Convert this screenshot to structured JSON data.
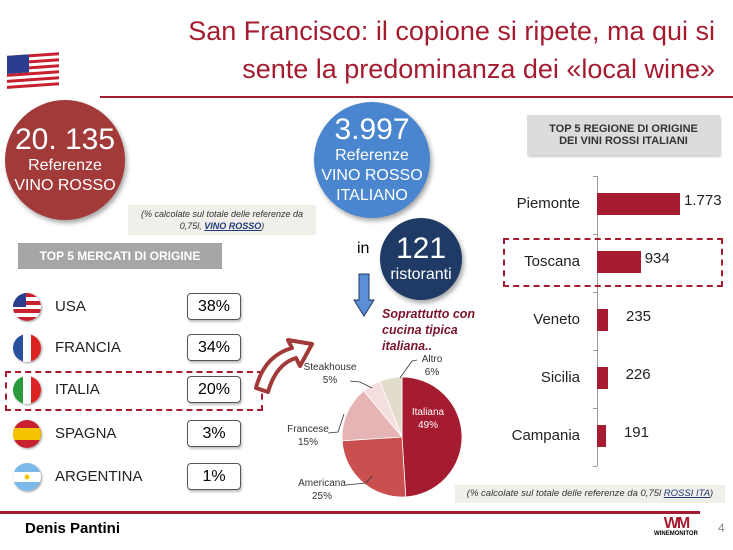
{
  "title": {
    "line1": "San Francisco: il copione si ripete, ma qui si",
    "line2": "sente la predominanza dei «local wine»"
  },
  "stat_total": {
    "value": "20. 135",
    "line1": "Referenze",
    "line2": "VINO ROSSO",
    "color": "#a33a3a"
  },
  "stat_italian": {
    "value": "3.997",
    "line1": "Referenze",
    "line2": "VINO ROSSO",
    "line3": "ITALIANO",
    "color": "#4a86d0"
  },
  "restaurants": {
    "prefix": "in",
    "value": "121",
    "label": "ristoranti",
    "color": "#1f3a64"
  },
  "note_left": {
    "text": "(% calcolate sul totale delle referenze da 0,75l, ",
    "link": "VINO ROSSO",
    "end": ")"
  },
  "markets": {
    "header": "TOP 5 MERCATI DI ORIGINE",
    "items": [
      {
        "name": "USA",
        "pct": "38%",
        "flag": "usa-flag-icon"
      },
      {
        "name": "FRANCIA",
        "pct": "34%",
        "flag": "france-flag-icon"
      },
      {
        "name": "ITALIA",
        "pct": "20%",
        "flag": "italy-flag-icon"
      },
      {
        "name": "SPAGNA",
        "pct": "3%",
        "flag": "spain-flag-icon"
      },
      {
        "name": "ARGENTINA",
        "pct": "1%",
        "flag": "argentina-flag-icon"
      }
    ]
  },
  "cuisine_note": "Soprattutto con cucina tipica italiana..",
  "regions": {
    "header_line1": "TOP 5 REGIONE DI ORIGINE",
    "header_line2": "DEI VINI ROSSI ITALIANI"
  },
  "note_right": {
    "text": "(% calcolate sul totale delle referenze da 0,75l  ",
    "link": "ROSSI ITA",
    "end": ")"
  },
  "footer": {
    "author": "Denis Pantini",
    "page": "4",
    "logo": "WINEMONITOR"
  },
  "chart_data": [
    {
      "type": "pie",
      "slices": [
        {
          "label": "Italiana",
          "value": 49,
          "display": "49%",
          "color": "#a51c30"
        },
        {
          "label": "Americana",
          "value": 25,
          "display": "25%",
          "color": "#c9504f"
        },
        {
          "label": "Francese",
          "value": 15,
          "display": "15%",
          "color": "#e6b4b4"
        },
        {
          "label": "Steakhouse",
          "value": 5,
          "display": "5%",
          "color": "#f4dede"
        },
        {
          "label": "Altro",
          "value": 6,
          "display": "6%",
          "color": "#e2dccb"
        }
      ]
    },
    {
      "type": "bar",
      "orientation": "horizontal",
      "categories": [
        "Piemonte",
        "Toscana",
        "Veneto",
        "Sicilia",
        "Campania"
      ],
      "values": [
        1773,
        934,
        235,
        226,
        191
      ],
      "labels": [
        "1.773",
        "934",
        "235",
        "226",
        "191"
      ],
      "color": "#a51c30",
      "xlim": [
        0,
        1773
      ]
    }
  ]
}
